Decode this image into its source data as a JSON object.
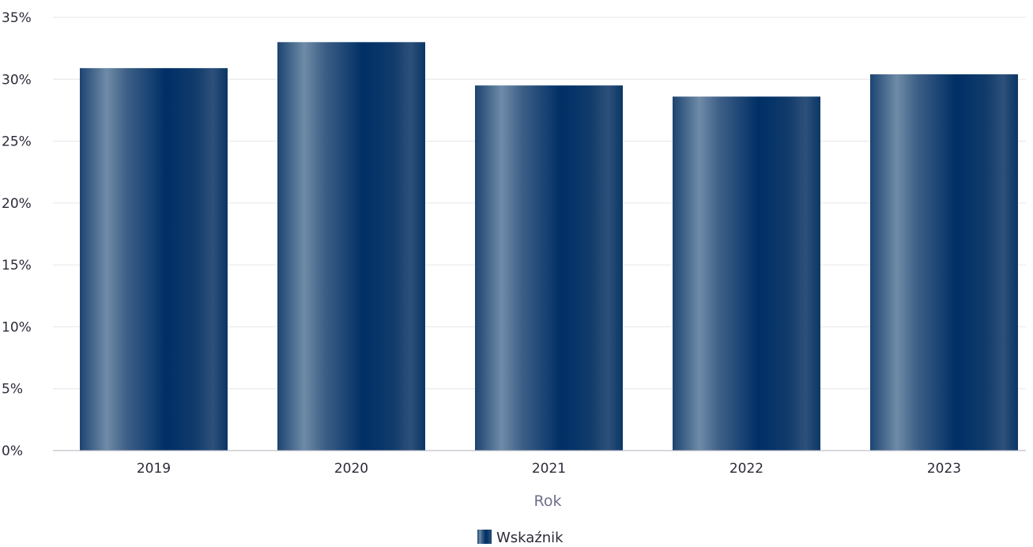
{
  "chart_data": {
    "type": "bar",
    "title": "",
    "xlabel": "Rok",
    "ylabel": "",
    "ylim": [
      0,
      35
    ],
    "yticks": [
      0,
      5,
      10,
      15,
      20,
      25,
      30,
      35
    ],
    "ytick_labels": [
      "0%",
      "5%",
      "10%",
      "15%",
      "20%",
      "25%",
      "30%",
      "35%"
    ],
    "y_unit": "%",
    "grid": true,
    "legend_position": "bottom-center",
    "categories": [
      "2019",
      "2020",
      "2021",
      "2022",
      "2023"
    ],
    "series": [
      {
        "name": "Wskaźnik",
        "values": [
          30.9,
          33.0,
          29.5,
          28.6,
          30.4
        ],
        "color": "#002f66"
      }
    ]
  },
  "colors": {
    "bar_dark": "#002f66",
    "bar_light": "#6f8ba8",
    "grid": "#e6e6e6",
    "axis": "#b0b0bc"
  }
}
